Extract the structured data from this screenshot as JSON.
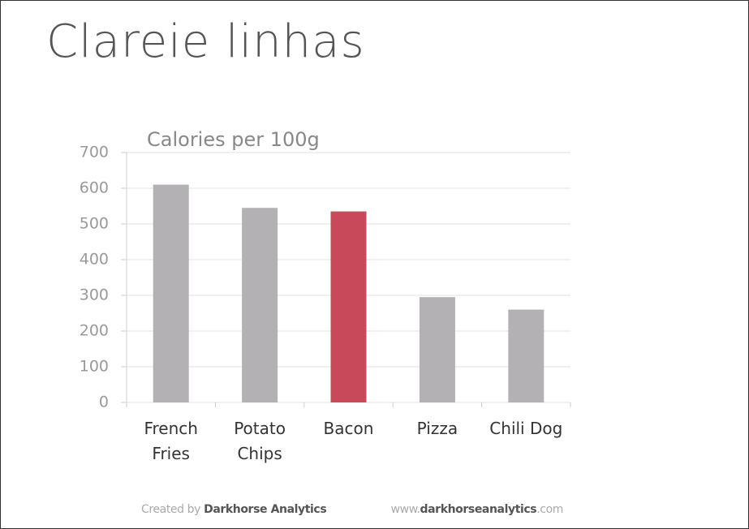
{
  "slide_title": "Clareie linhas",
  "chart_data": {
    "type": "bar",
    "subtitle": "Calories per 100g",
    "categories": [
      "French Fries",
      "Potato Chips",
      "Bacon",
      "Pizza",
      "Chili Dog"
    ],
    "values": [
      610,
      545,
      535,
      295,
      260
    ],
    "colors": [
      "#b3b1b4",
      "#b3b1b4",
      "#c84a5a",
      "#b3b1b4",
      "#b3b1b4"
    ],
    "ylim": [
      0,
      700
    ],
    "yticks": [
      0,
      100,
      200,
      300,
      400,
      500,
      600,
      700
    ],
    "grid": true
  },
  "footer": {
    "created_by": "Created by",
    "author": "Darkhorse Analytics",
    "url_prefix": "www.",
    "url_domain": "darkhorseanalytics",
    "url_suffix": ".com"
  }
}
